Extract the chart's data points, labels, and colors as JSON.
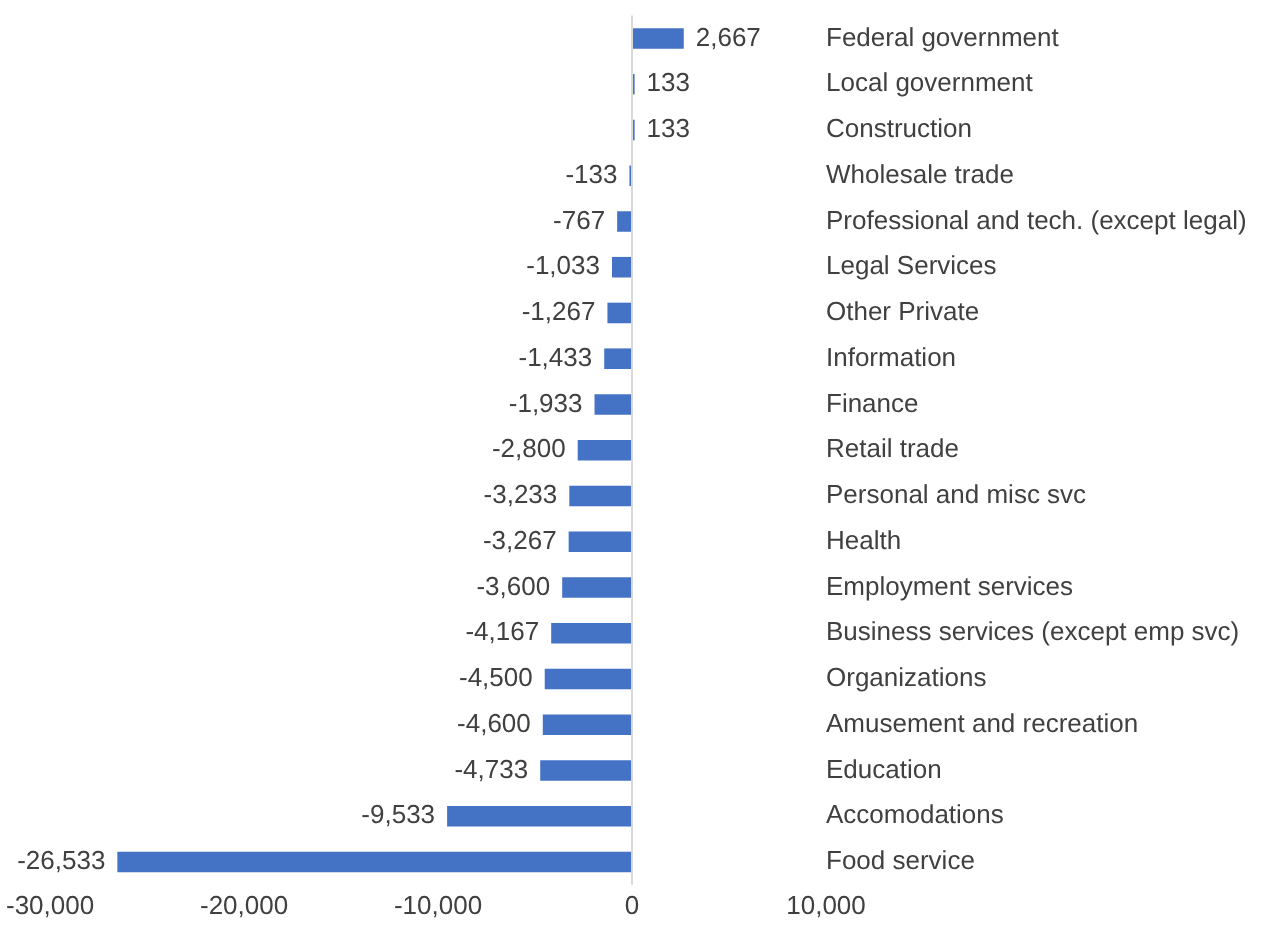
{
  "chart_data": {
    "type": "bar",
    "orientation": "horizontal",
    "legend": false,
    "value_labels": [
      "2,667",
      "133",
      "133",
      "-133",
      "-767",
      "-1,033",
      "-1,267",
      "-1,433",
      "-1,933",
      "-2,800",
      "-3,233",
      "-3,267",
      "-3,600",
      "-4,167",
      "-4,500",
      "-4,600",
      "-4,733",
      "-9,533",
      "-26,533"
    ],
    "categories": [
      "Federal government",
      "Local government",
      "Construction",
      "Wholesale trade",
      "Professional and tech. (except legal)",
      "Legal Services",
      "Other Private",
      "Information",
      "Finance",
      "Retail trade",
      "Personal and misc svc",
      "Health",
      "Employment services",
      "Business services (except emp svc)",
      "Organizations",
      "Amusement and recreation",
      "Education",
      "Accomodations",
      "Food service"
    ],
    "values": [
      2667,
      133,
      133,
      -133,
      -767,
      -1033,
      -1267,
      -1433,
      -1933,
      -2800,
      -3233,
      -3267,
      -3600,
      -4167,
      -4500,
      -4600,
      -4733,
      -9533,
      -26533
    ],
    "color": "#4472c4",
    "xlim": [
      -30000,
      10000
    ],
    "xticks": [
      {
        "value": -30000,
        "label": "-30,000"
      },
      {
        "value": -20000,
        "label": "-20,000"
      },
      {
        "value": -10000,
        "label": "-10,000"
      },
      0,
      {
        "value": 10000,
        "label": "10,000"
      }
    ]
  }
}
